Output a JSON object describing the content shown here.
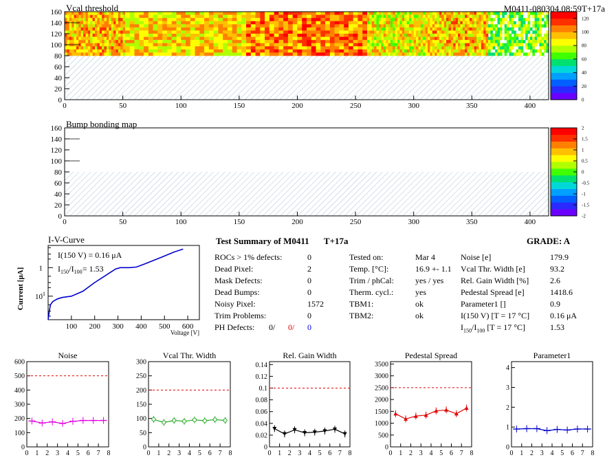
{
  "module_tag": "M0411-080304.08:59T+17a",
  "maps": [
    {
      "title": "Vcal threshold",
      "x_ticks": [
        0,
        50,
        100,
        150,
        200,
        250,
        300,
        350,
        400
      ],
      "y_ticks": [
        0,
        20,
        40,
        60,
        80,
        100,
        120,
        140,
        160
      ],
      "colorbar_ticks": [
        "0",
        "20",
        "40",
        "60",
        "80",
        "100",
        "120"
      ],
      "colorbar_range": [
        0,
        130
      ],
      "roc_blocks": [
        {
          "from": 0,
          "to": 52,
          "mean": 95
        },
        {
          "from": 52,
          "to": 156,
          "mean": 90
        },
        {
          "from": 156,
          "to": 260,
          "mean": 105
        },
        {
          "from": 260,
          "to": 312,
          "mean": 85
        },
        {
          "from": 312,
          "to": 364,
          "mean": 93
        },
        {
          "from": 364,
          "to": 416,
          "mean": 70
        }
      ],
      "filled_rows": [
        80,
        160
      ]
    },
    {
      "title": "Bump bonding map",
      "x_ticks": [
        0,
        50,
        100,
        150,
        200,
        250,
        300,
        350,
        400
      ],
      "y_ticks": [
        0,
        20,
        40,
        60,
        80,
        100,
        120,
        140,
        160
      ],
      "colorbar_ticks": [
        "2",
        "1.5",
        "1",
        "0.5",
        "0",
        "-0.5",
        "-1",
        "-1.5",
        "-2"
      ],
      "colorbar_range": [
        -2,
        2
      ],
      "filled_rows": [
        80,
        160
      ]
    }
  ],
  "iv": {
    "title": "I-V-Curve",
    "ylabel": "Current [μA]",
    "xlabel": "Voltage [V]",
    "ann1": "I(150 V) = 0.16 μA",
    "ann2_pre": "I",
    "ann2_sub1": "150",
    "ann2_mid": "/I",
    "ann2_sub2": "100",
    "ann2_post": "=  1.53",
    "x_ticks": [
      "100",
      "200",
      "300",
      "400",
      "500",
      "600"
    ],
    "y_ticks": [
      "1",
      "10",
      "10"
    ],
    "y_tick_exps": [
      "",
      "",
      "-1"
    ],
    "curve": [
      [
        0,
        0.015
      ],
      [
        5,
        0.03
      ],
      [
        10,
        0.05
      ],
      [
        20,
        0.065
      ],
      [
        40,
        0.08
      ],
      [
        60,
        0.09
      ],
      [
        100,
        0.1
      ],
      [
        150,
        0.15
      ],
      [
        200,
        0.3
      ],
      [
        250,
        0.55
      ],
      [
        290,
        0.9
      ],
      [
        310,
        1.0
      ],
      [
        350,
        1.0
      ],
      [
        380,
        1.05
      ],
      [
        420,
        1.4
      ],
      [
        480,
        2.2
      ],
      [
        540,
        3.5
      ],
      [
        580,
        4.5
      ]
    ]
  },
  "summary": {
    "title": "Test Summary of M0411",
    "tag": "T+17a",
    "grade": "GRADE:  A",
    "col1": [
      {
        "label": "ROCs > 1% defects:",
        "value": "0"
      },
      {
        "label": "Dead Pixel:",
        "value": "2"
      },
      {
        "label": "Mask Defects:",
        "value": "0"
      },
      {
        "label": "Dead Bumps:",
        "value": "0"
      },
      {
        "label": "Noisy Pixel:",
        "value": "1572"
      },
      {
        "label": "Trim Problems:",
        "value": "0"
      }
    ],
    "ph_label": "PH Defects:",
    "ph_values": [
      "0/",
      "0/",
      "0"
    ],
    "ph_colors": [
      "#000000",
      "#e00000",
      "#0000e0"
    ],
    "col2": [
      {
        "label": "Tested on:",
        "value": "Mar 4"
      },
      {
        "label": "Temp. [°C]:",
        "value": "16.9 +- 1.1"
      },
      {
        "label": "Trim / phCal:",
        "value": "yes / yes"
      },
      {
        "label": "Therm. cycl.:",
        "value": "yes"
      },
      {
        "label": "TBM1:",
        "value": "ok"
      },
      {
        "label": "TBM2:",
        "value": "ok"
      }
    ],
    "col3": [
      {
        "label": "Noise [e]",
        "value": "179.9"
      },
      {
        "label": "Vcal Thr. Width [e]",
        "value": "93.2"
      },
      {
        "label": "Rel. Gain Width [%]",
        "value": "2.6"
      },
      {
        "label": "Pedestal Spread [e]",
        "value": "1418.6"
      },
      {
        "label": "Parameter1 []",
        "value": "0.9"
      },
      {
        "label": "I(150 V) [T = 17 °C]",
        "value": "0.16 μA"
      }
    ],
    "ratio_pre": "I",
    "ratio_sub1": "150",
    "ratio_mid": "/I",
    "ratio_sub2": "100",
    "ratio_post": " [T = 17 °C]",
    "ratio_value": "1.53"
  },
  "small_plots": [
    {
      "title": "Noise",
      "color": "#e000e0",
      "y_ticks": [
        "0",
        "100",
        "200",
        "300",
        "400",
        "500",
        "600"
      ],
      "ymax": 600,
      "cut": 500,
      "values": [
        182,
        168,
        176,
        165,
        180,
        186,
        186,
        186
      ],
      "marker": "none"
    },
    {
      "title": "Vcal Thr. Width",
      "color": "#22aa22",
      "y_ticks": [
        "0",
        "50",
        "100",
        "150",
        "200",
        "250",
        "300"
      ],
      "ymax": 300,
      "cut": 200,
      "values": [
        97,
        86,
        93,
        90,
        95,
        92,
        96,
        93
      ],
      "marker": "circle"
    },
    {
      "title": "Rel. Gain Width",
      "color": "#000000",
      "y_ticks": [
        "0",
        "0.02",
        "0.04",
        "0.06",
        "0.08",
        "0.1",
        "0.12",
        "0.14"
      ],
      "ymax": 0.145,
      "cut": 0.1,
      "values": [
        0.031,
        0.022,
        0.029,
        0.024,
        0.025,
        0.027,
        0.03,
        0.022
      ],
      "marker": "triangle"
    },
    {
      "title": "Pedestal Spread",
      "color": "#e00000",
      "y_ticks": [
        "0",
        "500",
        "1000",
        "1500",
        "2000",
        "2500",
        "3000",
        "3500"
      ],
      "ymax": 3600,
      "cut": 2500,
      "values": [
        1400,
        1180,
        1300,
        1340,
        1520,
        1560,
        1400,
        1640
      ],
      "marker": "triangle-up"
    },
    {
      "title": "Parameter1",
      "color": "#0000cc",
      "y_ticks": [
        "0",
        "1",
        "2",
        "3",
        "4"
      ],
      "ymax": 4.3,
      "cut": null,
      "values": [
        0.9,
        0.92,
        0.92,
        0.82,
        0.88,
        0.85,
        0.9,
        0.9
      ],
      "marker": "none"
    }
  ],
  "small_x_ticks": [
    "0",
    "1",
    "2",
    "3",
    "4",
    "5",
    "6",
    "7",
    "8"
  ]
}
